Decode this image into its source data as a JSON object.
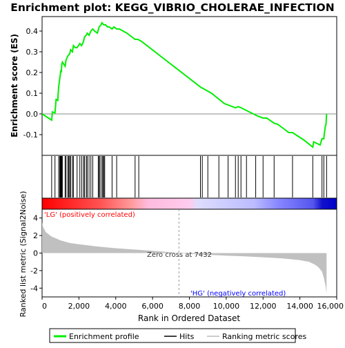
{
  "chart_data": {
    "type": "line",
    "title": "Enrichment plot: KEGG_VIBRIO_CHOLERAE_INFECTION",
    "top_panel": {
      "ylabel": "Enrichment score (ES)",
      "ylim": [
        -0.2,
        0.47
      ],
      "yticks": [
        "-0.1",
        "0.0",
        "0.1",
        "0.2",
        "0.3",
        "0.4"
      ],
      "series": [
        {
          "name": "Enrichment profile",
          "color": "#00ee00",
          "x": [
            0,
            520,
            560,
            700,
            760,
            850,
            900,
            960,
            990,
            1010,
            1040,
            1070,
            1100,
            1250,
            1300,
            1400,
            1500,
            1550,
            1650,
            1700,
            1800,
            1900,
            2050,
            2150,
            2250,
            2300,
            2400,
            2450,
            2550,
            2650,
            2750,
            2850,
            3000,
            3100,
            3200,
            3250,
            3350,
            3450,
            3550,
            3650,
            3800,
            3900,
            4050,
            4200,
            4600,
            4900,
            5050,
            5200,
            5400,
            7000,
            8600,
            9200,
            9900,
            10500,
            10650,
            10800,
            11700,
            12000,
            12200,
            12600,
            12800,
            13400,
            13600,
            14200,
            14700,
            14750,
            15100,
            15200,
            15300,
            15320,
            15380,
            15420,
            15450
          ],
          "y": [
            0.0,
            -0.03,
            0.01,
            0.005,
            0.07,
            0.065,
            0.13,
            0.17,
            0.19,
            0.21,
            0.2,
            0.24,
            0.25,
            0.23,
            0.26,
            0.28,
            0.29,
            0.31,
            0.3,
            0.33,
            0.32,
            0.32,
            0.34,
            0.33,
            0.35,
            0.37,
            0.38,
            0.39,
            0.38,
            0.4,
            0.41,
            0.4,
            0.39,
            0.42,
            0.43,
            0.44,
            0.43,
            0.43,
            0.42,
            0.42,
            0.41,
            0.42,
            0.41,
            0.41,
            0.39,
            0.37,
            0.36,
            0.36,
            0.35,
            0.24,
            0.13,
            0.1,
            0.05,
            0.03,
            0.035,
            0.03,
            -0.01,
            -0.02,
            -0.02,
            -0.045,
            -0.05,
            -0.09,
            -0.09,
            -0.125,
            -0.16,
            -0.135,
            -0.15,
            -0.12,
            -0.12,
            -0.1,
            -0.06,
            -0.05,
            0.0
          ]
        }
      ]
    },
    "hits": {
      "name": "Hits",
      "positions": [
        520,
        700,
        900,
        960,
        990,
        1010,
        1040,
        1070,
        1100,
        1250,
        1300,
        1400,
        1450,
        1500,
        1550,
        1650,
        1700,
        1900,
        2050,
        2150,
        2250,
        2300,
        2400,
        2450,
        2550,
        2650,
        2750,
        3050,
        3100,
        3150,
        3250,
        3300,
        3350,
        3400,
        3800,
        4050,
        5050,
        5250,
        8600,
        8700,
        9000,
        9600,
        10100,
        10500,
        10650,
        10800,
        11100,
        11600,
        12000,
        12600,
        13600,
        14700,
        15200,
        15300,
        15450
      ]
    },
    "bottom_panel": {
      "ylabel": "Ranked list metric (Signal2Noise)",
      "xlabel": "Rank in Ordered Dataset",
      "xlim": [
        0,
        16000
      ],
      "xticks": [
        "0",
        "2,000",
        "4,000",
        "6,000",
        "8,000",
        "10,000",
        "12,000",
        "14,000",
        "16,000"
      ],
      "ylim": [
        -5,
        5
      ],
      "yticks": [
        "4",
        "2",
        "0",
        "-2",
        "-4"
      ],
      "zero_cross_rank": 7432,
      "zero_cross_label": "Zero cross at 7432",
      "positive_label": "'LG' (positively correlated)",
      "negative_label": "'HG' (negatively correlated)",
      "metric_profile": {
        "name": "Ranking metric scores",
        "x": [
          0,
          50,
          200,
          500,
          1000,
          1500,
          2000,
          3000,
          4000,
          5000,
          6000,
          7000,
          7432,
          8000,
          9000,
          10000,
          11000,
          12000,
          13000,
          14000,
          14500,
          14800,
          15000,
          15200,
          15300,
          15400,
          15450
        ],
        "y": [
          3.5,
          3.0,
          2.4,
          1.9,
          1.45,
          1.15,
          1.0,
          0.75,
          0.55,
          0.4,
          0.25,
          0.1,
          0.0,
          -0.1,
          -0.2,
          -0.3,
          -0.38,
          -0.48,
          -0.6,
          -0.8,
          -1.0,
          -1.3,
          -1.6,
          -2.1,
          -2.8,
          -3.8,
          -4.6
        ]
      }
    },
    "legend": [
      "Enrichment profile",
      "Hits",
      "Ranking metric scores"
    ],
    "colors": {
      "es_line": "#00ee00",
      "positive": "#ff0000",
      "negative": "#0000ff",
      "metric_fill": "#c0c0c0"
    }
  }
}
